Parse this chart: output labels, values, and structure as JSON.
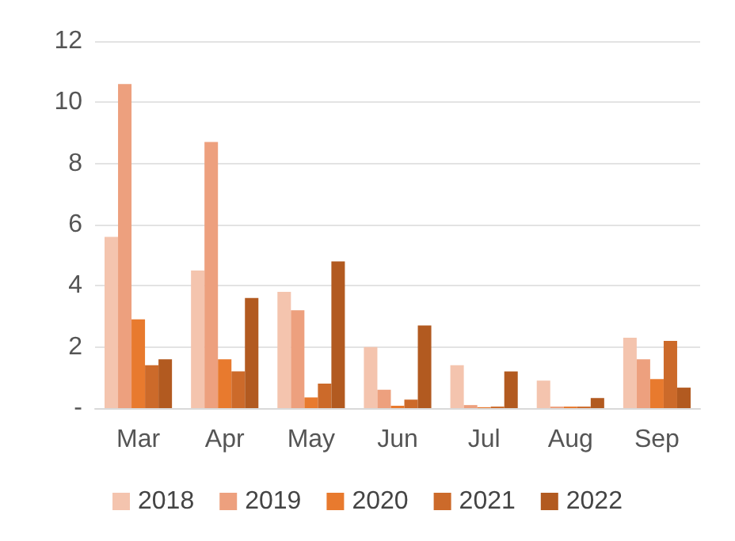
{
  "chart_data": {
    "type": "bar",
    "categories": [
      "Mar",
      "Apr",
      "May",
      "Jun",
      "Jul",
      "Aug",
      "Sep"
    ],
    "series": [
      {
        "name": "2018",
        "color": "#f4c4ae",
        "values": [
          5.6,
          4.5,
          3.8,
          2.0,
          1.4,
          0.9,
          2.3
        ]
      },
      {
        "name": "2019",
        "color": "#eda07e",
        "values": [
          10.6,
          8.7,
          3.2,
          0.6,
          0.1,
          0.05,
          1.6
        ]
      },
      {
        "name": "2020",
        "color": "#e87a2e",
        "values": [
          2.9,
          1.6,
          0.35,
          0.08,
          0.03,
          0.05,
          0.95
        ]
      },
      {
        "name": "2021",
        "color": "#cc6a2a",
        "values": [
          1.4,
          1.2,
          0.8,
          0.28,
          0.05,
          0.05,
          2.2
        ]
      },
      {
        "name": "2022",
        "color": "#b25a20",
        "values": [
          1.6,
          3.6,
          4.8,
          2.7,
          1.2,
          0.33,
          0.67
        ]
      }
    ],
    "ylim": [
      0,
      12
    ],
    "yticks": [
      {
        "value": 0,
        "label": "-"
      },
      2,
      4,
      6,
      8,
      10,
      12
    ],
    "grid": "y",
    "legend": "bottom"
  }
}
